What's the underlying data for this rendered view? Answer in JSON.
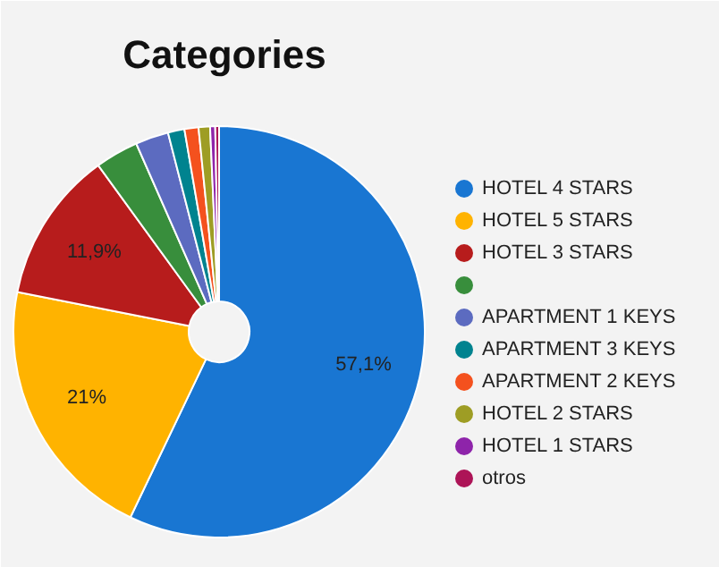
{
  "chart_data": {
    "type": "donut",
    "title": "Categories",
    "categories": [
      "HOTEL 4 STARS",
      "HOTEL 5 STARS",
      "HOTEL 3 STARS",
      null,
      "APARTMENT 1 KEYS",
      "APARTMENT 3 KEYS",
      "APARTMENT 2 KEYS",
      "HOTEL 2 STARS",
      "HOTEL 1 STARS",
      "otros"
    ],
    "values": [
      57.1,
      21,
      11.9,
      3.4,
      2.6,
      1.3,
      1.1,
      0.9,
      0.4,
      0.3
    ],
    "value_labels": [
      "57,1%",
      "21%",
      "11,9%",
      null,
      null,
      null,
      null,
      null,
      null,
      null
    ],
    "colors": [
      "#1976d2",
      "#ffb300",
      "#b71c1c",
      "#388e3c",
      "#5c6bc0",
      "#00838f",
      "#f4511e",
      "#9e9d24",
      "#8e24aa",
      "#ad1457"
    ],
    "legend": "right"
  }
}
